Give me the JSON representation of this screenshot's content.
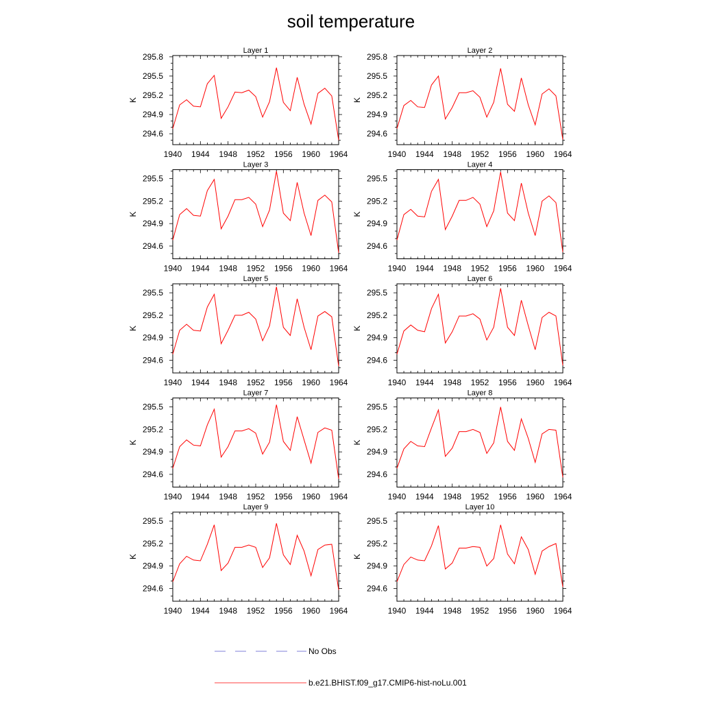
{
  "figure": {
    "title": "soil temperature"
  },
  "chart_data": [
    {
      "type": "line",
      "title": "Layer 1",
      "ylabel": "K",
      "xlim": [
        1940,
        1964
      ],
      "ylim": [
        294.43,
        295.82
      ],
      "xticks": [
        1940,
        1944,
        1948,
        1952,
        1956,
        1960,
        1964
      ],
      "yticks": [
        294.6,
        294.9,
        295.2,
        295.5,
        295.8
      ],
      "ytick_labels": [
        "294.6",
        "294.9",
        "295.2",
        "295.5",
        "295.8"
      ],
      "x": [
        1940,
        1941,
        1942,
        1943,
        1944,
        1945,
        1946,
        1947,
        1948,
        1949,
        1950,
        1951,
        1952,
        1953,
        1954,
        1955,
        1956,
        1957,
        1958,
        1959,
        1960,
        1961,
        1962,
        1963,
        1964
      ],
      "series": [
        {
          "name": "b.e21.BHIST.f09_g17.CMIP6-hist-noLu.001",
          "color": "#ff0000",
          "values": [
            294.68,
            295.05,
            295.13,
            295.03,
            295.02,
            295.38,
            295.51,
            294.84,
            295.02,
            295.25,
            295.24,
            295.28,
            295.18,
            294.86,
            295.1,
            295.63,
            295.09,
            294.96,
            295.48,
            295.06,
            294.75,
            295.23,
            295.31,
            295.19,
            294.5
          ]
        }
      ]
    },
    {
      "type": "line",
      "title": "Layer 2",
      "ylabel": "K",
      "xlim": [
        1940,
        1964
      ],
      "ylim": [
        294.43,
        295.82
      ],
      "xticks": [
        1940,
        1944,
        1948,
        1952,
        1956,
        1960,
        1964
      ],
      "yticks": [
        294.6,
        294.9,
        295.2,
        295.5,
        295.8
      ],
      "ytick_labels": [
        "294.6",
        "294.9",
        "295.2",
        "295.5",
        "295.8"
      ],
      "x": [
        1940,
        1941,
        1942,
        1943,
        1944,
        1945,
        1946,
        1947,
        1948,
        1949,
        1950,
        1951,
        1952,
        1953,
        1954,
        1955,
        1956,
        1957,
        1958,
        1959,
        1960,
        1961,
        1962,
        1963,
        1964
      ],
      "series": [
        {
          "name": "b.e21.BHIST.f09_g17.CMIP6-hist-noLu.001",
          "color": "#ff0000",
          "values": [
            294.68,
            295.04,
            295.12,
            295.02,
            295.01,
            295.36,
            295.5,
            294.83,
            295.01,
            295.24,
            295.24,
            295.27,
            295.17,
            294.86,
            295.09,
            295.62,
            295.06,
            294.95,
            295.47,
            295.05,
            294.74,
            295.22,
            295.3,
            295.19,
            294.51
          ]
        }
      ]
    },
    {
      "type": "line",
      "title": "Layer 3",
      "ylabel": "K",
      "xlim": [
        1940,
        1964
      ],
      "ylim": [
        294.43,
        295.62
      ],
      "xticks": [
        1940,
        1944,
        1948,
        1952,
        1956,
        1960,
        1964
      ],
      "yticks": [
        294.6,
        294.9,
        295.2,
        295.5
      ],
      "ytick_labels": [
        "294.6",
        "294.9",
        "295.2",
        "295.5"
      ],
      "x": [
        1940,
        1941,
        1942,
        1943,
        1944,
        1945,
        1946,
        1947,
        1948,
        1949,
        1950,
        1951,
        1952,
        1953,
        1954,
        1955,
        1956,
        1957,
        1958,
        1959,
        1960,
        1961,
        1962,
        1963,
        1964
      ],
      "series": [
        {
          "name": "b.e21.BHIST.f09_g17.CMIP6-hist-noLu.001",
          "color": "#ff0000",
          "values": [
            294.68,
            295.02,
            295.1,
            295.01,
            295.0,
            295.34,
            295.49,
            294.83,
            295.0,
            295.22,
            295.22,
            295.25,
            295.16,
            294.86,
            295.08,
            295.6,
            295.04,
            294.94,
            295.45,
            295.04,
            294.74,
            295.21,
            295.28,
            295.19,
            294.51
          ]
        }
      ]
    },
    {
      "type": "line",
      "title": "Layer 4",
      "ylabel": "K",
      "xlim": [
        1940,
        1964
      ],
      "ylim": [
        294.43,
        295.62
      ],
      "xticks": [
        1940,
        1944,
        1948,
        1952,
        1956,
        1960,
        1964
      ],
      "yticks": [
        294.6,
        294.9,
        295.2,
        295.5
      ],
      "ytick_labels": [
        "294.6",
        "294.9",
        "295.2",
        "295.5"
      ],
      "x": [
        1940,
        1941,
        1942,
        1943,
        1944,
        1945,
        1946,
        1947,
        1948,
        1949,
        1950,
        1951,
        1952,
        1953,
        1954,
        1955,
        1956,
        1957,
        1958,
        1959,
        1960,
        1961,
        1962,
        1963,
        1964
      ],
      "series": [
        {
          "name": "b.e21.BHIST.f09_g17.CMIP6-hist-noLu.001",
          "color": "#ff0000",
          "values": [
            294.68,
            295.02,
            295.09,
            295.0,
            294.99,
            295.33,
            295.49,
            294.82,
            295.0,
            295.21,
            295.21,
            295.25,
            295.16,
            294.86,
            295.07,
            295.59,
            295.04,
            294.94,
            295.44,
            295.04,
            294.74,
            295.2,
            295.27,
            295.18,
            294.52
          ]
        }
      ]
    },
    {
      "type": "line",
      "title": "Layer 5",
      "ylabel": "K",
      "xlim": [
        1940,
        1964
      ],
      "ylim": [
        294.43,
        295.62
      ],
      "xticks": [
        1940,
        1944,
        1948,
        1952,
        1956,
        1960,
        1964
      ],
      "yticks": [
        294.6,
        294.9,
        295.2,
        295.5
      ],
      "ytick_labels": [
        "294.6",
        "294.9",
        "295.2",
        "295.5"
      ],
      "x": [
        1940,
        1941,
        1942,
        1943,
        1944,
        1945,
        1946,
        1947,
        1948,
        1949,
        1950,
        1951,
        1952,
        1953,
        1954,
        1955,
        1956,
        1957,
        1958,
        1959,
        1960,
        1961,
        1962,
        1963,
        1964
      ],
      "series": [
        {
          "name": "b.e21.BHIST.f09_g17.CMIP6-hist-noLu.001",
          "color": "#ff0000",
          "values": [
            294.68,
            295.0,
            295.08,
            295.0,
            294.99,
            295.31,
            295.48,
            294.82,
            295.0,
            295.2,
            295.2,
            295.24,
            295.15,
            294.86,
            295.06,
            295.58,
            295.04,
            294.93,
            295.42,
            295.04,
            294.74,
            295.19,
            295.25,
            295.18,
            294.52
          ]
        }
      ]
    },
    {
      "type": "line",
      "title": "Layer 6",
      "ylabel": "K",
      "xlim": [
        1940,
        1964
      ],
      "ylim": [
        294.43,
        295.62
      ],
      "xticks": [
        1940,
        1944,
        1948,
        1952,
        1956,
        1960,
        1964
      ],
      "yticks": [
        294.6,
        294.9,
        295.2,
        295.5
      ],
      "ytick_labels": [
        "294.6",
        "294.9",
        "295.2",
        "295.5"
      ],
      "x": [
        1940,
        1941,
        1942,
        1943,
        1944,
        1945,
        1946,
        1947,
        1948,
        1949,
        1950,
        1951,
        1952,
        1953,
        1954,
        1955,
        1956,
        1957,
        1958,
        1959,
        1960,
        1961,
        1962,
        1963,
        1964
      ],
      "series": [
        {
          "name": "b.e21.BHIST.f09_g17.CMIP6-hist-noLu.001",
          "color": "#ff0000",
          "values": [
            294.68,
            294.99,
            295.07,
            295.0,
            294.98,
            295.29,
            295.48,
            294.83,
            294.98,
            295.19,
            295.19,
            295.22,
            295.15,
            294.87,
            295.04,
            295.56,
            295.04,
            294.93,
            295.4,
            295.06,
            294.74,
            295.17,
            295.24,
            295.19,
            294.53
          ]
        }
      ]
    },
    {
      "type": "line",
      "title": "Layer 7",
      "ylabel": "K",
      "xlim": [
        1940,
        1964
      ],
      "ylim": [
        294.43,
        295.62
      ],
      "xticks": [
        1940,
        1944,
        1948,
        1952,
        1956,
        1960,
        1964
      ],
      "yticks": [
        294.6,
        294.9,
        295.2,
        295.5
      ],
      "ytick_labels": [
        "294.6",
        "294.9",
        "295.2",
        "295.5"
      ],
      "x": [
        1940,
        1941,
        1942,
        1943,
        1944,
        1945,
        1946,
        1947,
        1948,
        1949,
        1950,
        1951,
        1952,
        1953,
        1954,
        1955,
        1956,
        1957,
        1958,
        1959,
        1960,
        1961,
        1962,
        1963,
        1964
      ],
      "series": [
        {
          "name": "b.e21.BHIST.f09_g17.CMIP6-hist-noLu.001",
          "color": "#ff0000",
          "values": [
            294.68,
            294.97,
            295.06,
            294.99,
            294.98,
            295.26,
            295.47,
            294.83,
            294.97,
            295.18,
            295.18,
            295.21,
            295.15,
            294.87,
            295.03,
            295.53,
            295.04,
            294.92,
            295.37,
            295.06,
            294.75,
            295.16,
            295.22,
            295.19,
            294.54
          ]
        }
      ]
    },
    {
      "type": "line",
      "title": "Layer 8",
      "ylabel": "K",
      "xlim": [
        1940,
        1964
      ],
      "ylim": [
        294.43,
        295.62
      ],
      "xticks": [
        1940,
        1944,
        1948,
        1952,
        1956,
        1960,
        1964
      ],
      "yticks": [
        294.6,
        294.9,
        295.2,
        295.5
      ],
      "ytick_labels": [
        "294.6",
        "294.9",
        "295.2",
        "295.5"
      ],
      "x": [
        1940,
        1941,
        1942,
        1943,
        1944,
        1945,
        1946,
        1947,
        1948,
        1949,
        1950,
        1951,
        1952,
        1953,
        1954,
        1955,
        1956,
        1957,
        1958,
        1959,
        1960,
        1961,
        1962,
        1963,
        1964
      ],
      "series": [
        {
          "name": "b.e21.BHIST.f09_g17.CMIP6-hist-noLu.001",
          "color": "#ff0000",
          "values": [
            294.68,
            294.94,
            295.04,
            294.98,
            294.97,
            295.22,
            295.46,
            294.84,
            294.95,
            295.17,
            295.17,
            295.2,
            295.16,
            294.88,
            295.02,
            295.5,
            295.04,
            294.92,
            295.34,
            295.08,
            294.76,
            295.14,
            295.2,
            295.19,
            294.56
          ]
        }
      ]
    },
    {
      "type": "line",
      "title": "Layer 9",
      "ylabel": "K",
      "xlim": [
        1940,
        1964
      ],
      "ylim": [
        294.43,
        295.62
      ],
      "xticks": [
        1940,
        1944,
        1948,
        1952,
        1956,
        1960,
        1964
      ],
      "yticks": [
        294.6,
        294.9,
        295.2,
        295.5
      ],
      "ytick_labels": [
        "294.6",
        "294.9",
        "295.2",
        "295.5"
      ],
      "x": [
        1940,
        1941,
        1942,
        1943,
        1944,
        1945,
        1946,
        1947,
        1948,
        1949,
        1950,
        1951,
        1952,
        1953,
        1954,
        1955,
        1956,
        1957,
        1958,
        1959,
        1960,
        1961,
        1962,
        1963,
        1964
      ],
      "series": [
        {
          "name": "b.e21.BHIST.f09_g17.CMIP6-hist-noLu.001",
          "color": "#ff0000",
          "values": [
            294.69,
            294.93,
            295.03,
            294.98,
            294.97,
            295.19,
            295.45,
            294.84,
            294.94,
            295.15,
            295.15,
            295.18,
            295.15,
            294.88,
            295.01,
            295.47,
            295.05,
            294.92,
            295.31,
            295.1,
            294.77,
            295.12,
            295.18,
            295.19,
            294.58
          ]
        }
      ]
    },
    {
      "type": "line",
      "title": "Layer 10",
      "ylabel": "K",
      "xlim": [
        1940,
        1964
      ],
      "ylim": [
        294.43,
        295.62
      ],
      "xticks": [
        1940,
        1944,
        1948,
        1952,
        1956,
        1960,
        1964
      ],
      "yticks": [
        294.6,
        294.9,
        295.2,
        295.5
      ],
      "ytick_labels": [
        "294.6",
        "294.9",
        "295.2",
        "295.5"
      ],
      "x": [
        1940,
        1941,
        1942,
        1943,
        1944,
        1945,
        1946,
        1947,
        1948,
        1949,
        1950,
        1951,
        1952,
        1953,
        1954,
        1955,
        1956,
        1957,
        1958,
        1959,
        1960,
        1961,
        1962,
        1963,
        1964
      ],
      "series": [
        {
          "name": "b.e21.BHIST.f09_g17.CMIP6-hist-noLu.001",
          "color": "#ff0000",
          "values": [
            294.69,
            294.92,
            295.02,
            294.98,
            294.97,
            295.17,
            295.44,
            294.86,
            294.94,
            295.14,
            295.14,
            295.16,
            295.15,
            294.9,
            295.0,
            295.45,
            295.06,
            294.93,
            295.29,
            295.12,
            294.79,
            295.1,
            295.16,
            295.2,
            294.62
          ]
        }
      ]
    }
  ],
  "legend": {
    "items": [
      {
        "label": "No Obs",
        "color": "#5555cc",
        "style": "dashed"
      },
      {
        "label": "b.e21.BHIST.f09_g17.CMIP6-hist-noLu.001",
        "color": "#ff0000",
        "style": "solid"
      }
    ]
  }
}
